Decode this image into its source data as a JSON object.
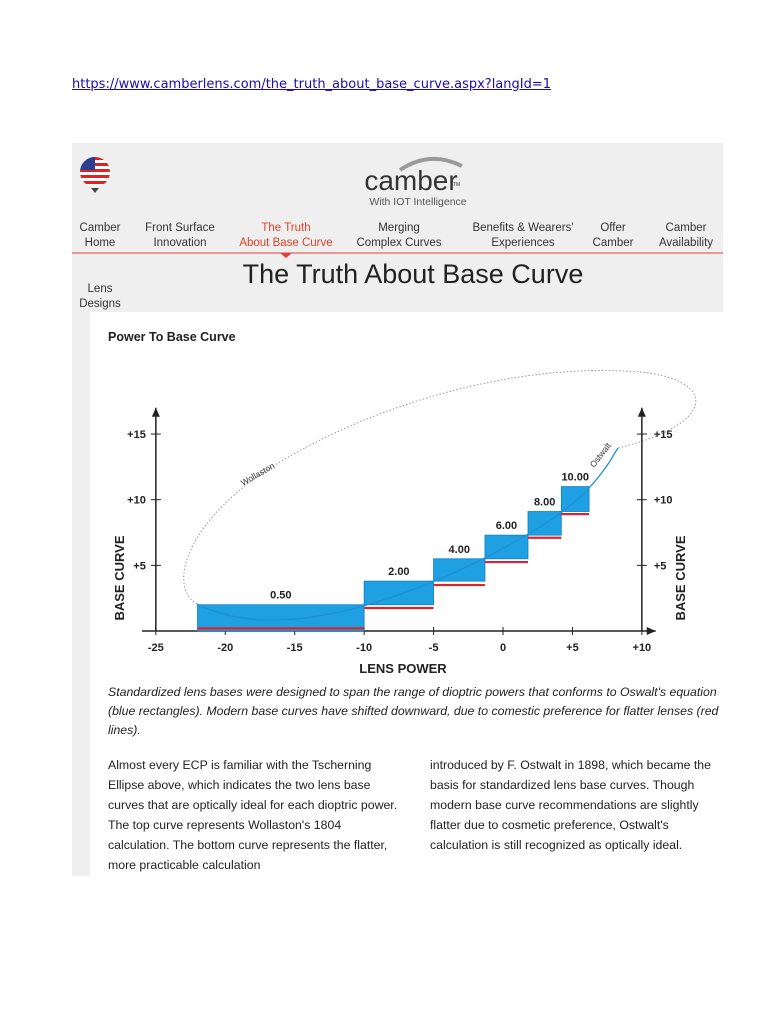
{
  "url": "https://www.camberlens.com/the_truth_about_base_curve.aspx?langId=1",
  "header": {
    "logo": "camber",
    "logo_mark": "TM",
    "tagline": "With IOT Intelligence"
  },
  "nav": {
    "active": 2,
    "items": [
      [
        "Camber",
        "Home"
      ],
      [
        "Front Surface",
        "Innovation"
      ],
      [
        "The Truth",
        "About Base Curve"
      ],
      [
        "Merging",
        "Complex Curves"
      ],
      [
        "Benefits & Wearers'",
        "Experiences"
      ],
      [
        "Offer",
        "Camber"
      ],
      [
        "Camber",
        "Availability"
      ]
    ]
  },
  "page_title": "The Truth About Base Curve",
  "sidebar": [
    "Lens",
    "Designs"
  ],
  "chart": {
    "title": "Power To Base Curve",
    "xlabel": "LENS POWER",
    "ylabel": "BASE CURVE",
    "xlim": [
      -26,
      11
    ],
    "ylim": [
      0,
      17
    ],
    "xticks": [
      -25,
      -20,
      -15,
      -10,
      -5,
      0,
      {
        "value": 5,
        "label": "+5"
      },
      {
        "value": 10,
        "label": "+10"
      }
    ],
    "yticks": [
      {
        "value": 5,
        "label": "+5"
      },
      {
        "value": 10,
        "label": "+10"
      },
      {
        "value": 15,
        "label": "+15"
      }
    ],
    "bars": [
      {
        "label": "0.50",
        "x": [
          -22,
          -10
        ],
        "y": [
          0,
          2
        ]
      },
      {
        "label": "2.00",
        "x": [
          -10,
          -5
        ],
        "y": [
          2,
          3.8
        ]
      },
      {
        "label": "4.00",
        "x": [
          -5,
          -1.3
        ],
        "y": [
          3.8,
          5.5
        ]
      },
      {
        "label": "6.00",
        "x": [
          -1.3,
          1.8
        ],
        "y": [
          5.5,
          7.3
        ]
      },
      {
        "label": "8.00",
        "x": [
          1.8,
          4.2
        ],
        "y": [
          7.3,
          9.1
        ]
      },
      {
        "label": "10.00",
        "x": [
          4.2,
          6.2
        ],
        "y": [
          9.1,
          11
        ]
      }
    ],
    "bar_color": "#1ea0e2",
    "modern": {
      "color": "#e0232b",
      "lines": [
        {
          "x": [
            -22,
            -10
          ],
          "y": 0.2
        },
        {
          "x": [
            -10,
            -5
          ],
          "y": 1.75
        },
        {
          "x": [
            -5,
            -1.3
          ],
          "y": 3.5
        },
        {
          "x": [
            -1.3,
            1.8
          ],
          "y": 5.25
        },
        {
          "x": [
            1.8,
            4.2
          ],
          "y": 7.1
        },
        {
          "x": [
            4.2,
            6.2
          ],
          "y": 8.9
        }
      ]
    },
    "curve_labels": [
      "Wollaston",
      "Ostwalt"
    ],
    "caption": "Standardized lens bases were designed to span the range of dioptric powers that conforms to Oswalt's equation (blue rectangles). Modern base curves have shifted downward, due to comestic preference for flatter lenses (red lines)."
  },
  "body": {
    "left": "Almost every ECP is familiar with the Tscherning Ellipse above, which indicates the two lens base curves that are optically ideal for each dioptric power. The top curve represents Wollaston's 1804 calculation. The bottom curve represents the flatter, more practicable calculation",
    "right": "introduced by F. Ostwalt in 1898, which became the basis for standardized lens base curves. Though modern base curve recommendations are slightly flatter due to cosmetic preference, Ostwalt's calculation is still recognized as optically ideal."
  }
}
